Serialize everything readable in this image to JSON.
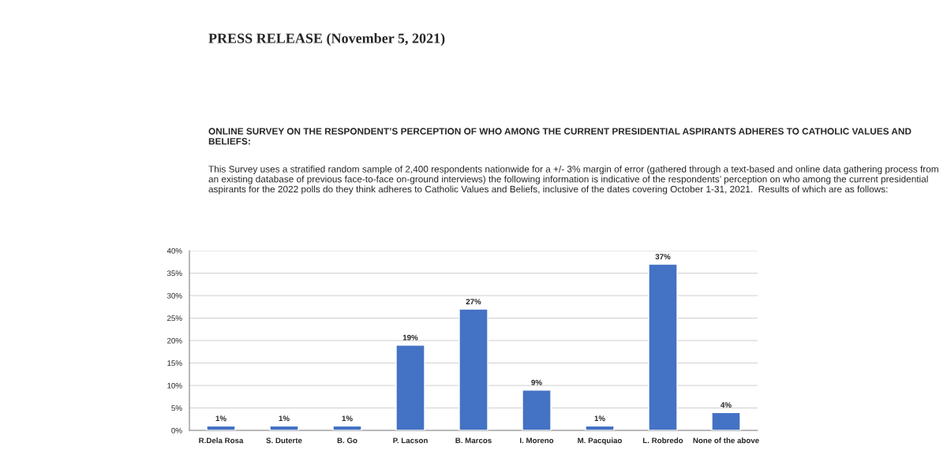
{
  "chart_data": {
    "type": "bar",
    "title": "PRESS RELEASE (November 5, 2021)",
    "subtitle": "ONLINE SURVEY ON THE RESPONDENT’S PERCEPTION OF WHO AMONG THE CURRENT PRESIDENTIAL ASPIRANTS ADHERES TO CATHOLIC VALUES AND BELIEFS:",
    "annotations": [
      "This Survey uses a stratified random sample of 2,400 respondents nationwide for a +/- 3% margin of error (gathered through a text-based and online data gathering process from an existing database of previous face-to-face on-ground interviews) the following information is indicative of the respondents’ perception on who among the current presidential aspirants for the 2022 polls do they think adheres to Catholic Values and Beliefs, inclusive of the dates covering October 1-31, 2021.  Results of which are as follows:"
    ],
    "categories": [
      "R.Dela Rosa",
      "S. Duterte",
      "B. Go",
      "P. Lacson",
      "B. Marcos",
      "I. Moreno",
      "M. Pacquiao",
      "L. Robredo",
      "None of the above"
    ],
    "values": [
      1,
      1,
      1,
      19,
      27,
      9,
      1,
      37,
      4
    ],
    "value_labels": [
      "1%",
      "1%",
      "1%",
      "19%",
      "27%",
      "9%",
      "1%",
      "37%",
      "4%"
    ],
    "color": "#4472c4",
    "ylim": [
      0,
      40
    ],
    "yticks": [
      {
        "value": 0,
        "label": "0%"
      },
      {
        "value": 5,
        "label": "5%"
      },
      {
        "value": 10,
        "label": "10%"
      },
      {
        "value": 15,
        "label": "15%"
      },
      {
        "value": 20,
        "label": "20%"
      },
      {
        "value": 25,
        "label": "25%"
      },
      {
        "value": 30,
        "label": "30%"
      },
      {
        "value": 35,
        "label": "35%"
      },
      {
        "value": 40,
        "label": "40%"
      }
    ],
    "grid": "y",
    "legend": false
  }
}
